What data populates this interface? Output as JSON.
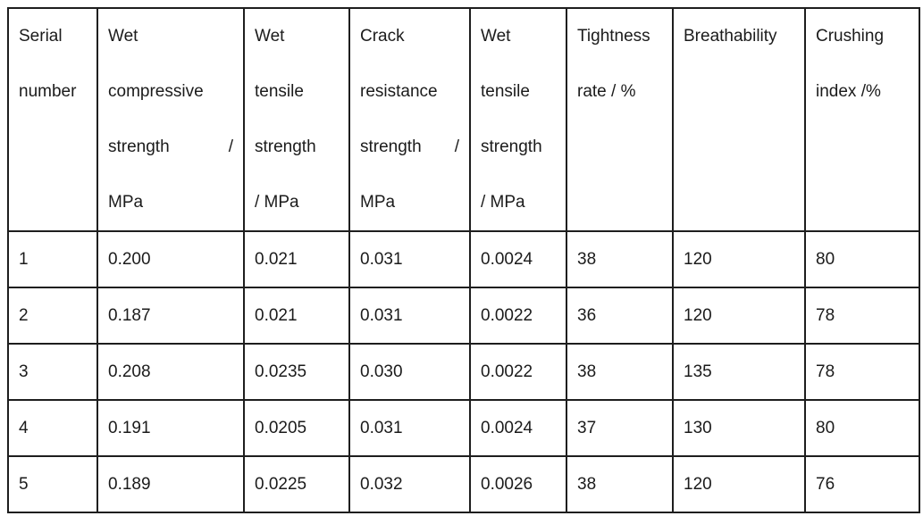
{
  "table": {
    "header": [
      {
        "label": "Serial number",
        "lines": [
          "Serial",
          "number"
        ]
      },
      {
        "label": "Wet compressive strength / MPa",
        "lines": [
          "Wet",
          "compressive",
          "strength /",
          "MPa"
        ]
      },
      {
        "label": "Wet tensile strength / MPa",
        "lines": [
          "Wet",
          "tensile",
          "strength",
          "/ MPa"
        ]
      },
      {
        "label": "Crack resistance strength / MPa",
        "lines": [
          "Crack",
          "resistance",
          "strength /",
          "MPa"
        ]
      },
      {
        "label": "Wet tensile strength / MPa",
        "lines": [
          "Wet",
          "tensile",
          "strength",
          "/ MPa"
        ]
      },
      {
        "label": "Tightness rate / %",
        "lines": [
          "Tightness",
          "rate / %"
        ]
      },
      {
        "label": "Breathability",
        "lines": [
          "Breathability"
        ]
      },
      {
        "label": "Crushing index /%",
        "lines": [
          "Crushing",
          "index /%"
        ]
      }
    ],
    "rows": [
      [
        "1",
        "0.200",
        "0.021",
        "0.031",
        "0.0024",
        "38",
        "120",
        "80"
      ],
      [
        "2",
        "0.187",
        "0.021",
        "0.031",
        "0.0022",
        "36",
        "120",
        "78"
      ],
      [
        "3",
        "0.208",
        "0.0235",
        "0.030",
        "0.0022",
        "38",
        "135",
        "78"
      ],
      [
        "4",
        "0.191",
        "0.0205",
        "0.031",
        "0.0024",
        "37",
        "130",
        "80"
      ],
      [
        "5",
        "0.189",
        "0.0225",
        "0.032",
        "0.0026",
        "38",
        "120",
        "76"
      ]
    ]
  },
  "colors": {
    "border": "#1e1e1e",
    "text": "#1b1b1b",
    "background": "#ffffff"
  }
}
